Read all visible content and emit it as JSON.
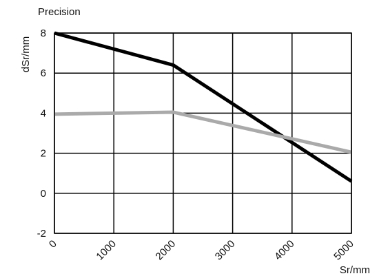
{
  "chart_data": {
    "type": "line",
    "title": "Precision",
    "xlabel": "Sr/mm",
    "ylabel": "dSr/mm",
    "x_ticks": [
      "0",
      "1000",
      "2000",
      "3000",
      "4000",
      "5000"
    ],
    "y_ticks": [
      "8",
      "6",
      "4",
      "2",
      "0",
      "-2"
    ],
    "xlim": [
      0,
      5000
    ],
    "ylim": [
      -2,
      8
    ],
    "grid": true,
    "legend": "none",
    "series": [
      {
        "color": "#000000",
        "x": [
          0,
          2000,
          5000
        ],
        "y": [
          8.0,
          6.4,
          0.6
        ]
      },
      {
        "color": "#aaaaaa",
        "x": [
          0,
          2000,
          5000
        ],
        "y": [
          3.95,
          4.05,
          2.05
        ]
      }
    ]
  }
}
